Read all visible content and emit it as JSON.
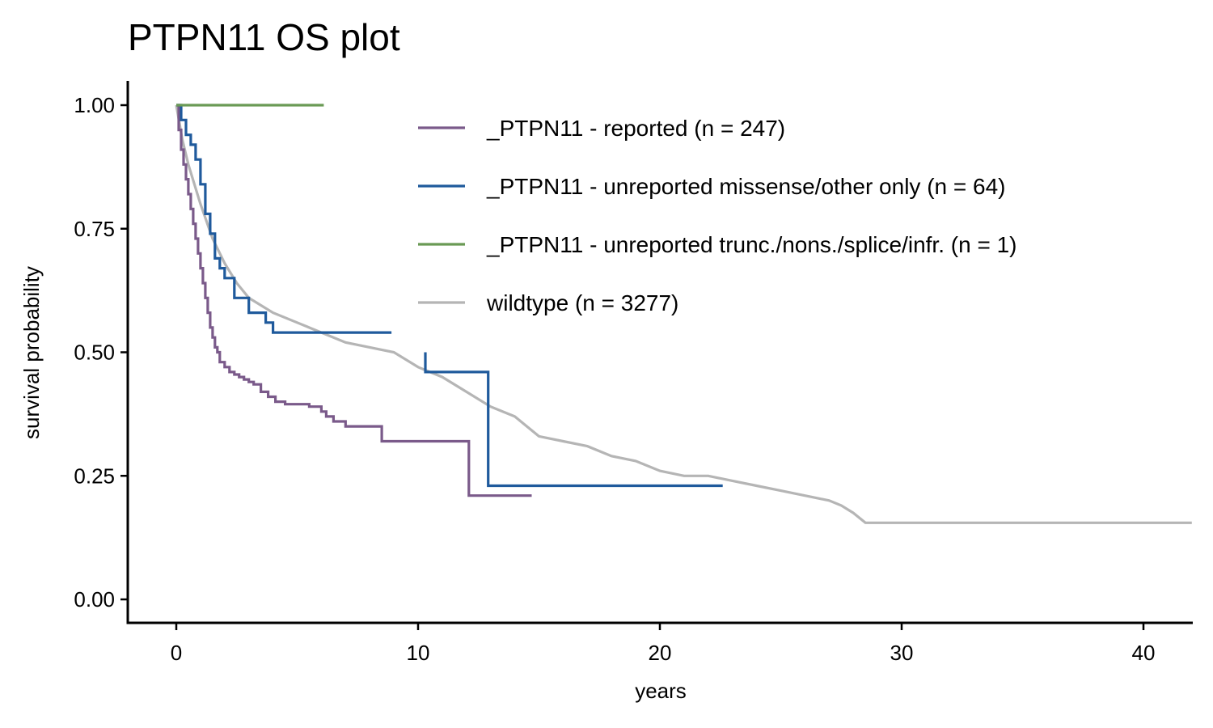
{
  "chart_data": {
    "type": "line",
    "title": "PTPN11 OS plot",
    "xlabel": "years",
    "ylabel": "survival probability",
    "xlim": [
      -2,
      42
    ],
    "ylim": [
      -0.05,
      1.05
    ],
    "x_ticks": [
      0,
      10,
      20,
      30,
      40
    ],
    "x_tick_labels": [
      "0",
      "10",
      "20",
      "30",
      "40"
    ],
    "y_ticks": [
      0,
      0.25,
      0.5,
      0.75,
      1.0
    ],
    "y_tick_labels": [
      "0.00",
      "0.25",
      "0.50",
      "0.75",
      "1.00"
    ],
    "grid": false,
    "legend_position": "top-right",
    "series": [
      {
        "name": "_PTPN11 - reported (n = 247)",
        "color": "#7a5a8a",
        "step": true,
        "x": [
          0,
          0.1,
          0.2,
          0.3,
          0.4,
          0.5,
          0.6,
          0.7,
          0.8,
          0.9,
          1.0,
          1.1,
          1.2,
          1.3,
          1.4,
          1.5,
          1.6,
          1.7,
          1.8,
          2.0,
          2.2,
          2.4,
          2.6,
          2.8,
          3.0,
          3.2,
          3.5,
          3.8,
          4.1,
          4.5,
          5.0,
          5.5,
          6.0,
          6.2,
          6.5,
          7.0,
          8.5,
          12.1,
          14.7
        ],
        "y": [
          1.0,
          0.95,
          0.91,
          0.88,
          0.85,
          0.82,
          0.79,
          0.76,
          0.73,
          0.7,
          0.67,
          0.64,
          0.61,
          0.58,
          0.55,
          0.53,
          0.51,
          0.5,
          0.48,
          0.47,
          0.46,
          0.455,
          0.45,
          0.445,
          0.44,
          0.435,
          0.42,
          0.41,
          0.4,
          0.395,
          0.395,
          0.39,
          0.38,
          0.37,
          0.36,
          0.35,
          0.32,
          0.21,
          0.21
        ]
      },
      {
        "name": "_PTPN11 - unreported missense/other only (n = 64)",
        "color": "#1f5a9c",
        "step": true,
        "x": [
          0,
          0.2,
          0.4,
          0.6,
          0.8,
          1.0,
          1.2,
          1.4,
          1.6,
          1.8,
          2.0,
          2.4,
          3.0,
          3.7,
          4.0,
          8.9
        ],
        "y": [
          1.0,
          0.97,
          0.94,
          0.92,
          0.89,
          0.84,
          0.78,
          0.74,
          0.69,
          0.67,
          0.65,
          0.61,
          0.58,
          0.56,
          0.54,
          0.54
        ]
      },
      {
        "name": "_PTPN11 - unreported trunc./nons./splice/infr. (n = 1)",
        "color": "#6a9a55",
        "step": true,
        "x": [
          0,
          6.1
        ],
        "y": [
          1.0,
          1.0
        ]
      },
      {
        "name": "wildtype (n = 3277)",
        "color": "#b5b5b5",
        "step": false,
        "x": [
          0,
          0.25,
          0.5,
          0.75,
          1.0,
          1.5,
          2.0,
          2.5,
          3.0,
          4.0,
          5.0,
          6.0,
          7.0,
          8.0,
          9.0,
          10.0,
          11.0,
          12.0,
          13.0,
          14.0,
          14.5,
          15.0,
          16.0,
          17.0,
          18.0,
          19.0,
          20.0,
          21.0,
          22.0,
          23.0,
          24.0,
          25.0,
          26.0,
          27.0,
          27.5,
          28.0,
          28.5,
          42.0
        ],
        "y": [
          1.0,
          0.93,
          0.88,
          0.84,
          0.8,
          0.73,
          0.68,
          0.64,
          0.61,
          0.58,
          0.56,
          0.54,
          0.52,
          0.51,
          0.5,
          0.47,
          0.45,
          0.42,
          0.39,
          0.37,
          0.35,
          0.33,
          0.32,
          0.31,
          0.29,
          0.28,
          0.26,
          0.25,
          0.25,
          0.24,
          0.23,
          0.22,
          0.21,
          0.2,
          0.19,
          0.175,
          0.155,
          0.155
        ]
      }
    ],
    "annotations": [
      {
        "series": "_PTPN11 - unreported missense/other only (n = 64)",
        "kind": "step-down",
        "x0": 10.3,
        "x1": 12.9,
        "y_before": 0.5,
        "y_mid": 0.46,
        "y_after": 0.23,
        "x_end": 22.6
      }
    ]
  }
}
